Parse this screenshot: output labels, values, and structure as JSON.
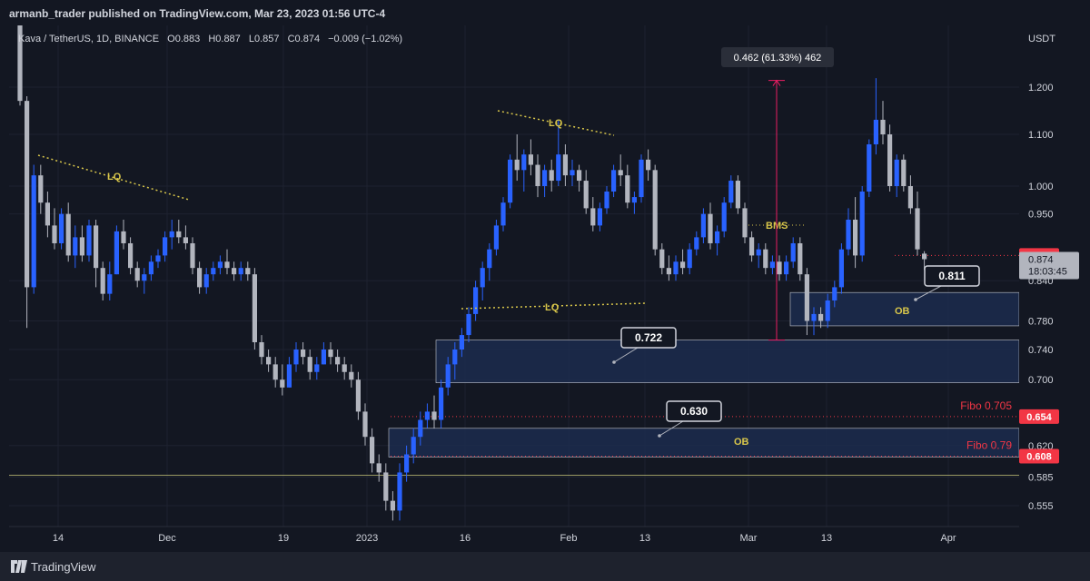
{
  "publish_line": "armanb_trader published on TradingView.com, Mar 23, 2023 01:56 UTC-4",
  "brand": "TradingView",
  "legend": {
    "symbol": "Kava / TetherUS, 1D, BINANCE",
    "open_label": "O",
    "open": "0.883",
    "high_label": "H",
    "high": "0.887",
    "low_label": "L",
    "low": "0.857",
    "close_label": "C",
    "close": "0.874",
    "change": "−0.009 (−1.02%)"
  },
  "price_scale": {
    "currency": "USDT",
    "ticks": [
      "1.200",
      "1.100",
      "1.000",
      "0.950",
      "0.840",
      "0.780",
      "0.740",
      "0.700",
      "0.620",
      "0.585",
      "0.555"
    ],
    "last_price_tag": "0.874",
    "countdown": "18:03:45",
    "red_tags": [
      "0.880",
      "0.654",
      "0.608"
    ]
  },
  "time_scale": {
    "ticks": [
      "14",
      "Dec",
      "19",
      "2023",
      "16",
      "Feb",
      "13",
      "Mar",
      "13",
      "Apr"
    ]
  },
  "annotations": {
    "measure": "0.462 (61.33%) 462",
    "lq_labels": [
      "LQ",
      "LQ",
      "LQ"
    ],
    "bms": "BMS",
    "ob_labels": [
      "OB",
      "OB"
    ],
    "callouts": [
      "0.811",
      "0.722",
      "0.630"
    ],
    "fibo": [
      "Fibo 0.705",
      "Fibo 0.79"
    ]
  },
  "colors": {
    "up": "#2962ff",
    "down": "#b2b5be",
    "background": "#131722",
    "zone": "#1c2b4d",
    "lq": "#d8c64a",
    "fibo": "#f23645"
  },
  "chart_data": {
    "type": "candlestick",
    "symbol": "Kava / TetherUS",
    "interval": "1D",
    "exchange": "BINANCE",
    "y_axis_unit": "USDT",
    "y_scale": "log",
    "ylim": [
      0.54,
      1.33
    ],
    "x_ticks": [
      "14",
      "Dec",
      "19",
      "2023",
      "16",
      "Feb",
      "13",
      "Mar",
      "13",
      "Apr"
    ],
    "candles": [
      [
        1.36,
        1.39,
        1.16,
        1.17
      ],
      [
        1.17,
        1.18,
        0.77,
        0.83
      ],
      [
        0.83,
        1.04,
        0.82,
        1.02
      ],
      [
        1.02,
        1.04,
        0.95,
        0.97
      ],
      [
        0.97,
        0.99,
        0.91,
        0.93
      ],
      [
        0.93,
        0.96,
        0.89,
        0.9
      ],
      [
        0.9,
        0.96,
        0.89,
        0.95
      ],
      [
        0.95,
        0.97,
        0.87,
        0.88
      ],
      [
        0.88,
        0.93,
        0.86,
        0.91
      ],
      [
        0.91,
        0.93,
        0.87,
        0.88
      ],
      [
        0.88,
        0.94,
        0.87,
        0.93
      ],
      [
        0.93,
        0.94,
        0.83,
        0.86
      ],
      [
        0.86,
        0.87,
        0.81,
        0.82
      ],
      [
        0.82,
        0.87,
        0.81,
        0.85
      ],
      [
        0.85,
        0.93,
        0.85,
        0.92
      ],
      [
        0.92,
        0.94,
        0.89,
        0.9
      ],
      [
        0.9,
        0.91,
        0.85,
        0.86
      ],
      [
        0.86,
        0.87,
        0.83,
        0.84
      ],
      [
        0.84,
        0.86,
        0.82,
        0.85
      ],
      [
        0.85,
        0.88,
        0.84,
        0.87
      ],
      [
        0.87,
        0.89,
        0.86,
        0.88
      ],
      [
        0.88,
        0.92,
        0.87,
        0.91
      ],
      [
        0.91,
        0.94,
        0.89,
        0.92
      ],
      [
        0.92,
        0.94,
        0.9,
        0.91
      ],
      [
        0.91,
        0.93,
        0.89,
        0.9
      ],
      [
        0.9,
        0.91,
        0.85,
        0.86
      ],
      [
        0.86,
        0.87,
        0.82,
        0.83
      ],
      [
        0.83,
        0.86,
        0.82,
        0.85
      ],
      [
        0.85,
        0.87,
        0.84,
        0.86
      ],
      [
        0.86,
        0.88,
        0.85,
        0.87
      ],
      [
        0.87,
        0.89,
        0.85,
        0.86
      ],
      [
        0.86,
        0.87,
        0.84,
        0.85
      ],
      [
        0.85,
        0.87,
        0.84,
        0.86
      ],
      [
        0.86,
        0.87,
        0.84,
        0.85
      ],
      [
        0.85,
        0.86,
        0.74,
        0.75
      ],
      [
        0.75,
        0.76,
        0.72,
        0.73
      ],
      [
        0.73,
        0.74,
        0.71,
        0.72
      ],
      [
        0.72,
        0.73,
        0.69,
        0.7
      ],
      [
        0.7,
        0.72,
        0.68,
        0.69
      ],
      [
        0.69,
        0.73,
        0.69,
        0.72
      ],
      [
        0.72,
        0.75,
        0.71,
        0.74
      ],
      [
        0.74,
        0.75,
        0.72,
        0.73
      ],
      [
        0.73,
        0.74,
        0.7,
        0.71
      ],
      [
        0.71,
        0.73,
        0.7,
        0.72
      ],
      [
        0.72,
        0.75,
        0.72,
        0.74
      ],
      [
        0.74,
        0.75,
        0.72,
        0.73
      ],
      [
        0.73,
        0.74,
        0.71,
        0.72
      ],
      [
        0.72,
        0.73,
        0.7,
        0.71
      ],
      [
        0.71,
        0.72,
        0.69,
        0.7
      ],
      [
        0.7,
        0.71,
        0.65,
        0.66
      ],
      [
        0.66,
        0.67,
        0.62,
        0.63
      ],
      [
        0.63,
        0.64,
        0.59,
        0.6
      ],
      [
        0.6,
        0.61,
        0.58,
        0.59
      ],
      [
        0.59,
        0.6,
        0.55,
        0.56
      ],
      [
        0.56,
        0.57,
        0.54,
        0.55
      ],
      [
        0.55,
        0.6,
        0.54,
        0.59
      ],
      [
        0.59,
        0.62,
        0.58,
        0.61
      ],
      [
        0.61,
        0.64,
        0.6,
        0.63
      ],
      [
        0.63,
        0.66,
        0.62,
        0.65
      ],
      [
        0.65,
        0.67,
        0.64,
        0.66
      ],
      [
        0.66,
        0.68,
        0.64,
        0.65
      ],
      [
        0.65,
        0.7,
        0.64,
        0.69
      ],
      [
        0.69,
        0.73,
        0.68,
        0.72
      ],
      [
        0.72,
        0.75,
        0.7,
        0.74
      ],
      [
        0.74,
        0.77,
        0.73,
        0.76
      ],
      [
        0.76,
        0.8,
        0.75,
        0.79
      ],
      [
        0.79,
        0.84,
        0.78,
        0.83
      ],
      [
        0.83,
        0.87,
        0.81,
        0.86
      ],
      [
        0.86,
        0.9,
        0.84,
        0.89
      ],
      [
        0.89,
        0.94,
        0.88,
        0.93
      ],
      [
        0.93,
        0.98,
        0.92,
        0.97
      ],
      [
        0.97,
        1.06,
        0.96,
        1.05
      ],
      [
        1.05,
        1.1,
        1.01,
        1.03
      ],
      [
        1.03,
        1.07,
        0.99,
        1.06
      ],
      [
        1.06,
        1.09,
        1.02,
        1.04
      ],
      [
        1.04,
        1.06,
        0.98,
        1.0
      ],
      [
        1.0,
        1.04,
        0.98,
        1.03
      ],
      [
        1.03,
        1.05,
        0.99,
        1.01
      ],
      [
        1.01,
        1.13,
        1.0,
        1.06
      ],
      [
        1.06,
        1.08,
        1.0,
        1.02
      ],
      [
        1.02,
        1.05,
        1.0,
        1.03
      ],
      [
        1.03,
        1.04,
        0.99,
        1.01
      ],
      [
        1.01,
        1.03,
        0.95,
        0.96
      ],
      [
        0.96,
        0.98,
        0.92,
        0.93
      ],
      [
        0.93,
        0.97,
        0.92,
        0.96
      ],
      [
        0.96,
        1.0,
        0.95,
        0.99
      ],
      [
        0.99,
        1.04,
        0.98,
        1.03
      ],
      [
        1.03,
        1.06,
        1.0,
        1.02
      ],
      [
        1.02,
        1.04,
        0.96,
        0.97
      ],
      [
        0.97,
        0.99,
        0.95,
        0.98
      ],
      [
        0.98,
        1.06,
        0.97,
        1.05
      ],
      [
        1.05,
        1.07,
        1.01,
        1.03
      ],
      [
        1.03,
        1.04,
        0.88,
        0.89
      ],
      [
        0.89,
        0.9,
        0.85,
        0.86
      ],
      [
        0.86,
        0.88,
        0.84,
        0.85
      ],
      [
        0.85,
        0.88,
        0.84,
        0.87
      ],
      [
        0.87,
        0.89,
        0.85,
        0.86
      ],
      [
        0.86,
        0.9,
        0.85,
        0.89
      ],
      [
        0.89,
        0.92,
        0.88,
        0.91
      ],
      [
        0.91,
        0.96,
        0.9,
        0.95
      ],
      [
        0.95,
        0.97,
        0.89,
        0.9
      ],
      [
        0.9,
        0.93,
        0.88,
        0.92
      ],
      [
        0.92,
        0.98,
        0.91,
        0.97
      ],
      [
        0.97,
        1.02,
        0.96,
        1.01
      ],
      [
        1.01,
        1.02,
        0.95,
        0.96
      ],
      [
        0.96,
        0.97,
        0.9,
        0.91
      ],
      [
        0.91,
        0.92,
        0.87,
        0.88
      ],
      [
        0.88,
        0.9,
        0.86,
        0.89
      ],
      [
        0.89,
        0.9,
        0.85,
        0.86
      ],
      [
        0.86,
        0.88,
        0.85,
        0.87
      ],
      [
        0.87,
        0.88,
        0.84,
        0.85
      ],
      [
        0.85,
        0.88,
        0.84,
        0.87
      ],
      [
        0.87,
        0.91,
        0.86,
        0.9
      ],
      [
        0.9,
        0.91,
        0.84,
        0.85
      ],
      [
        0.85,
        0.86,
        0.76,
        0.78
      ],
      [
        0.78,
        0.8,
        0.76,
        0.79
      ],
      [
        0.79,
        0.8,
        0.77,
        0.78
      ],
      [
        0.78,
        0.82,
        0.77,
        0.81
      ],
      [
        0.81,
        0.84,
        0.8,
        0.83
      ],
      [
        0.83,
        0.9,
        0.82,
        0.89
      ],
      [
        0.89,
        0.96,
        0.88,
        0.94
      ],
      [
        0.94,
        0.98,
        0.86,
        0.88
      ],
      [
        0.88,
        1.0,
        0.87,
        0.99
      ],
      [
        0.99,
        1.09,
        0.98,
        1.08
      ],
      [
        1.08,
        1.22,
        1.06,
        1.13
      ],
      [
        1.13,
        1.17,
        1.08,
        1.1
      ],
      [
        1.1,
        1.12,
        0.99,
        1.0
      ],
      [
        1.0,
        1.06,
        0.98,
        1.05
      ],
      [
        1.05,
        1.06,
        0.99,
        1.0
      ],
      [
        1.0,
        1.02,
        0.95,
        0.96
      ],
      [
        0.96,
        0.99,
        0.88,
        0.89
      ],
      [
        0.883,
        0.887,
        0.857,
        0.874
      ]
    ],
    "zones": [
      {
        "label": "OB",
        "top": 0.822,
        "bottom": 0.773
      },
      {
        "label": "",
        "top": 0.753,
        "bottom": 0.696
      },
      {
        "label": "OB",
        "top": 0.64,
        "bottom": 0.607
      }
    ],
    "horizontal_levels": [
      0.654,
      0.608,
      0.587,
      0.88
    ],
    "measure_range": {
      "from": 0.753,
      "to": 1.215,
      "change": "0.462 (61.33%) 462"
    }
  }
}
